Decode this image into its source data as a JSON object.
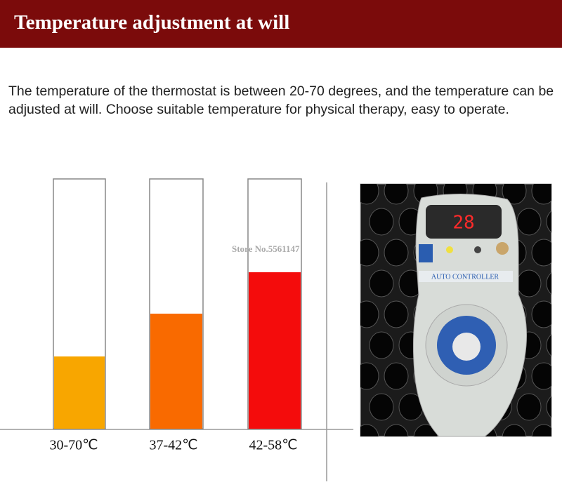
{
  "header": {
    "title": "Temperature adjustment at will"
  },
  "description": "The temperature of the thermostat is between 20-70 degrees, and the temperature can be adjusted at will. Choose suitable temperature for physical therapy, easy to operate.",
  "tubes": [
    {
      "label": "30-70℃"
    },
    {
      "label": "37-42℃"
    },
    {
      "label": "42-58℃"
    }
  ],
  "watermark": "Store No.5561147",
  "photo": {
    "display": "28",
    "panel_label": "AUTO CONTROLLER"
  }
}
